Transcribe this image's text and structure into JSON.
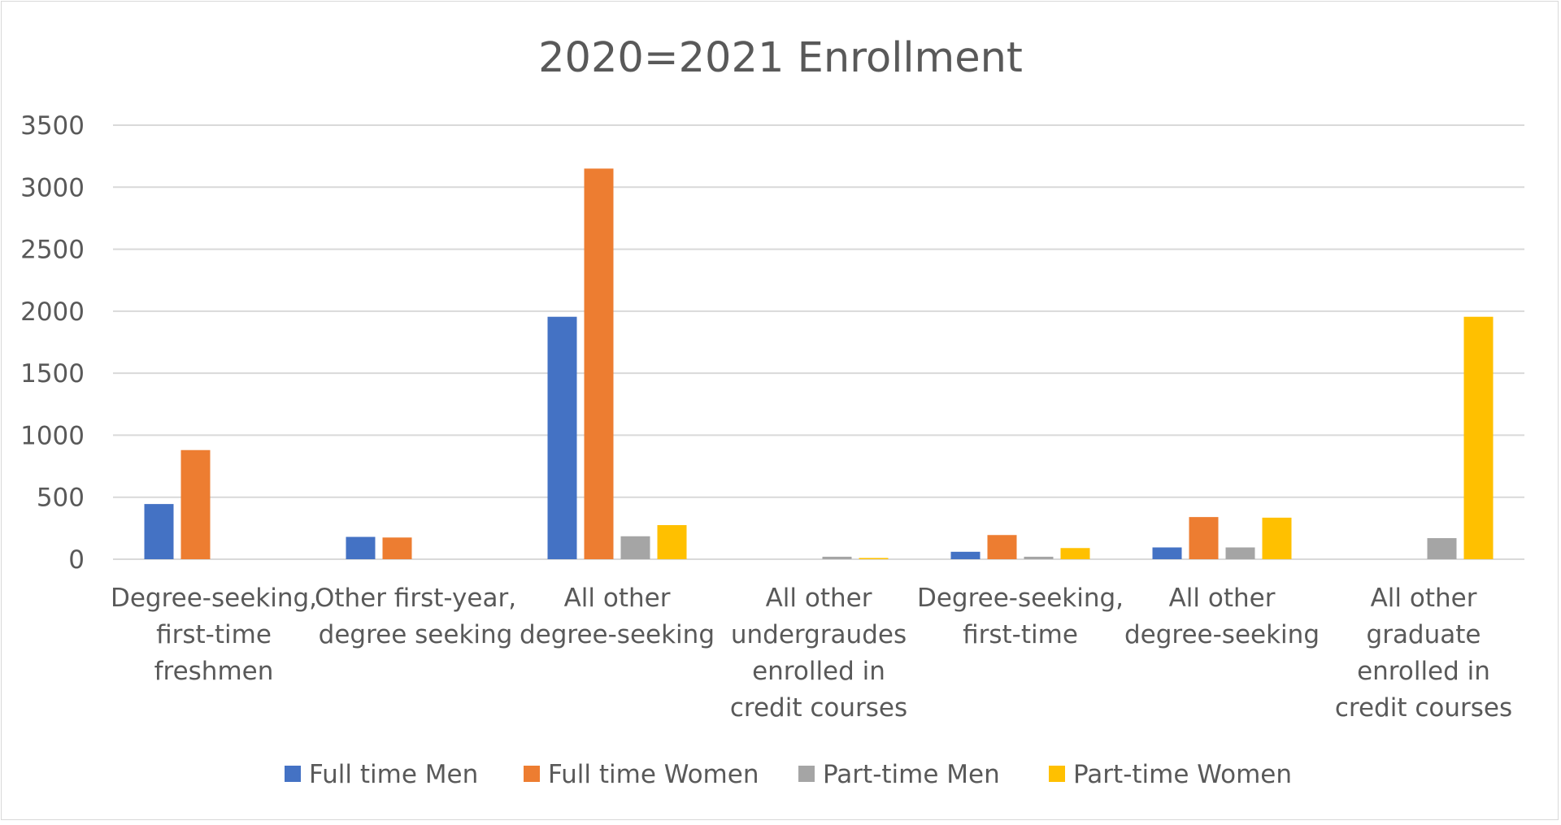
{
  "chart_data": {
    "type": "bar",
    "title": "2020=2021 Enrollment",
    "xlabel": "",
    "ylabel": "",
    "ylim": [
      0,
      3500
    ],
    "yticks": [
      0,
      500,
      1000,
      1500,
      2000,
      2500,
      3000,
      3500
    ],
    "grid": true,
    "legend_position": "bottom",
    "categories": [
      [
        "Degree-seeking,",
        "first-time",
        "freshmen"
      ],
      [
        "Other first-year,",
        "degree seeking"
      ],
      [
        "All other",
        "degree-seeking"
      ],
      [
        "All other",
        "undergraudes",
        "enrolled in",
        "credit courses"
      ],
      [
        "Degree-seeking,",
        "first-time"
      ],
      [
        "All other",
        "degree-seeking"
      ],
      [
        "All other",
        "graduate",
        "enrolled in",
        "credit courses"
      ]
    ],
    "series": [
      {
        "name": "Full time Men",
        "color": "#4472C4",
        "values": [
          445,
          180,
          1955,
          0,
          60,
          95,
          0
        ]
      },
      {
        "name": "Full time Women",
        "color": "#ED7D31",
        "values": [
          880,
          175,
          3150,
          0,
          195,
          340,
          0
        ]
      },
      {
        "name": "Part-time Men",
        "color": "#A5A5A5",
        "values": [
          0,
          0,
          185,
          20,
          20,
          95,
          170
        ]
      },
      {
        "name": "Part-time Women",
        "color": "#FFC000",
        "values": [
          0,
          0,
          275,
          10,
          90,
          335,
          1955
        ]
      }
    ]
  }
}
